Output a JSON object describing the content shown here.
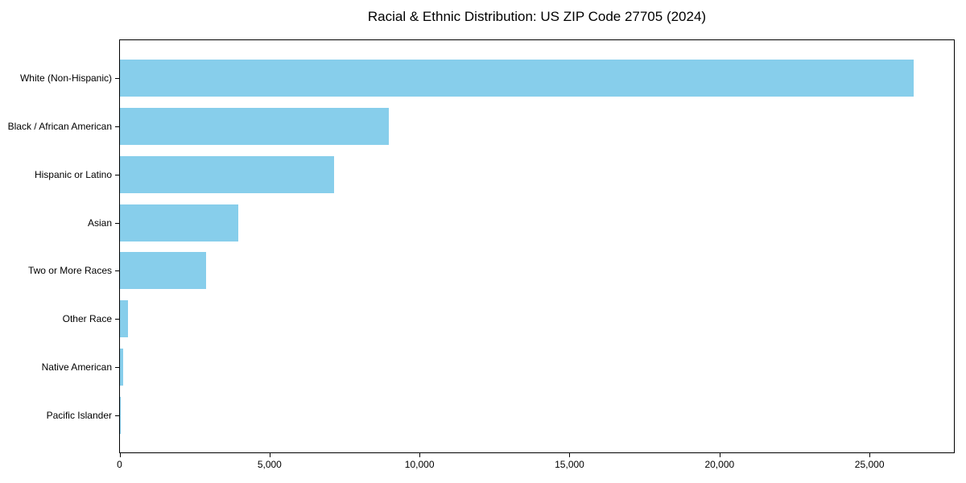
{
  "chart_data": {
    "type": "bar",
    "orientation": "horizontal",
    "title": "Racial & Ethnic Distribution: US ZIP Code 27705 (2024)",
    "categories": [
      "White (Non-Hispanic)",
      "Black / African American",
      "Hispanic or Latino",
      "Asian",
      "Two or More Races",
      "Other Race",
      "Native American",
      "Pacific Islander"
    ],
    "values": [
      26460,
      8950,
      7150,
      3940,
      2870,
      270,
      110,
      20
    ],
    "xlabel": "",
    "ylabel": "",
    "xlim": [
      0,
      27800
    ],
    "x_ticks": [
      0,
      5000,
      10000,
      15000,
      20000,
      25000
    ],
    "x_tick_labels": [
      "0",
      "5,000",
      "10,000",
      "15,000",
      "20,000",
      "25,000"
    ],
    "bar_color": "#87CEEB",
    "grid": false,
    "legend_position": "none",
    "plot_border_color": "#000000"
  }
}
